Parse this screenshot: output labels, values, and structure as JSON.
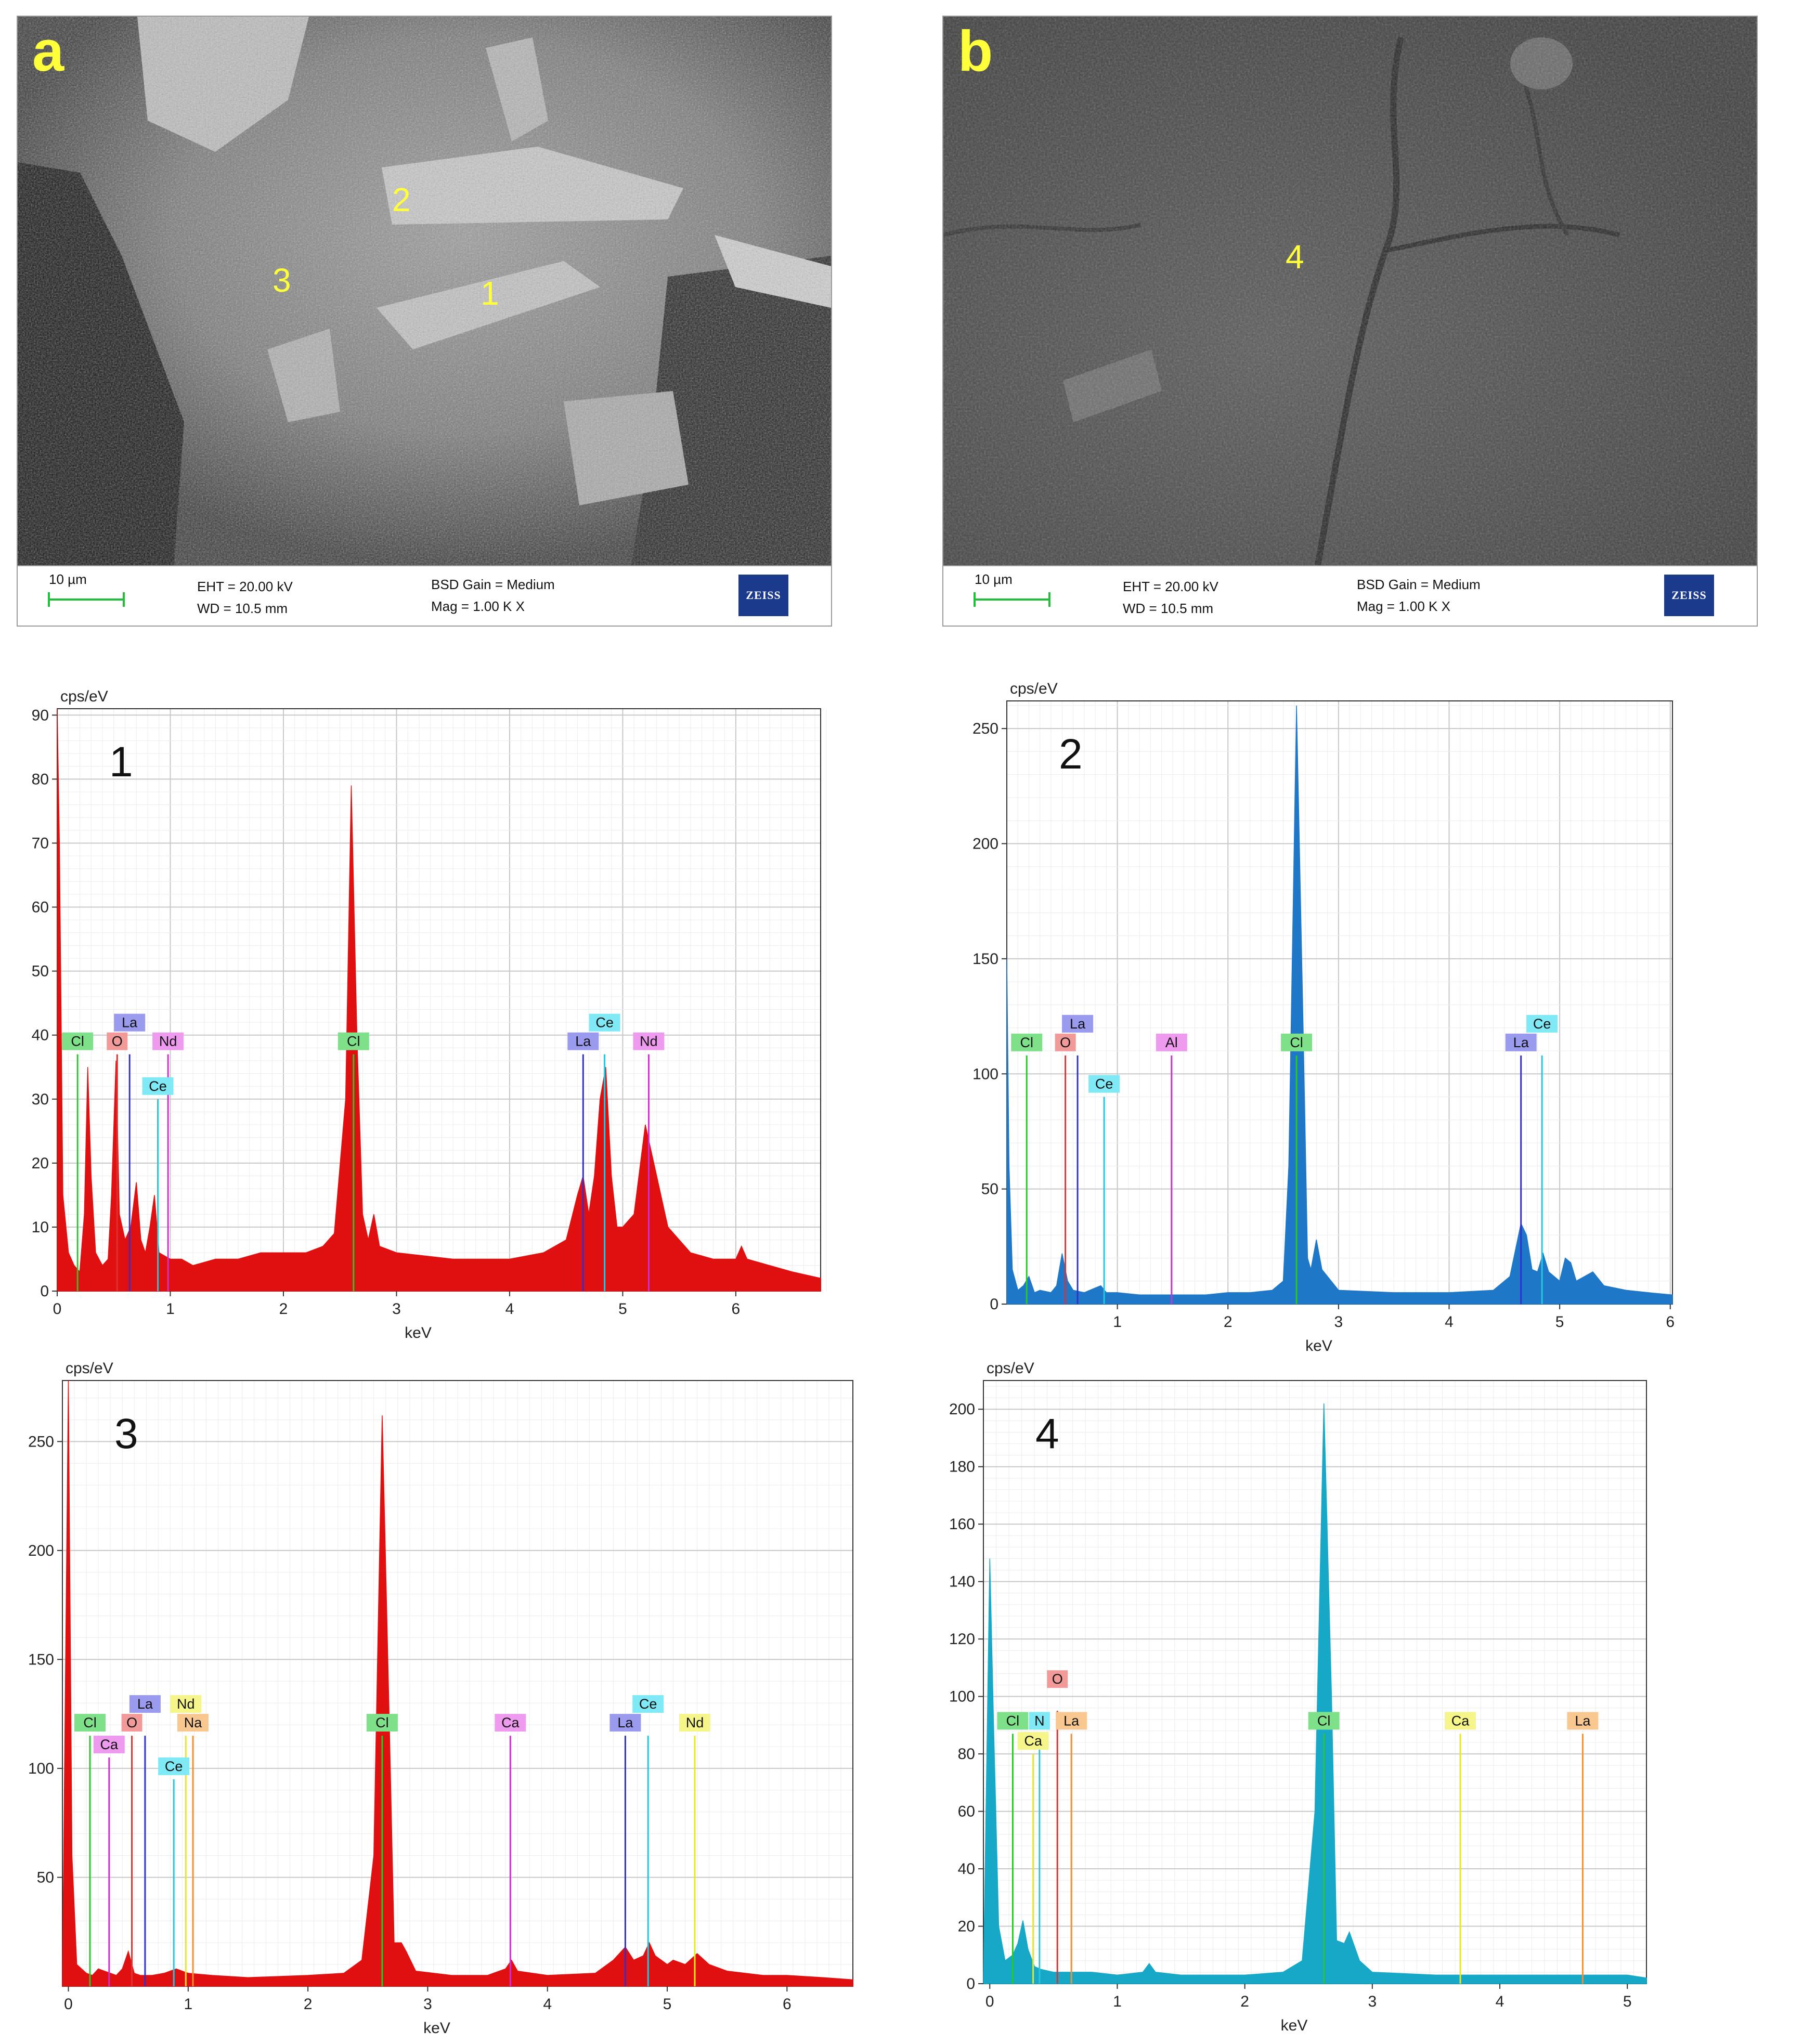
{
  "sem_panels": [
    {
      "letter": "a",
      "points": [
        "1",
        "2",
        "3"
      ],
      "scale_label": "10 µm",
      "eht": "EHT = 20.00 kV",
      "wd": "WD = 10.5 mm",
      "bsd": "BSD Gain = Medium",
      "mag": "Mag =    1.00 K X",
      "logo": "ZEISS",
      "tone": "bright"
    },
    {
      "letter": "b",
      "points": [
        "4"
      ],
      "scale_label": "10 µm",
      "eht": "EHT = 20.00 kV",
      "wd": "WD = 10.5 mm",
      "bsd": "BSD Gain = Medium",
      "mag": "Mag =    1.00 K X",
      "logo": "ZEISS",
      "tone": "dark"
    }
  ],
  "chart_data": [
    {
      "type": "area",
      "panel_number": "1",
      "ylabel": "cps/eV",
      "xlabel": "keV",
      "xlim": [
        0,
        6.75
      ],
      "ylim": [
        0,
        91
      ],
      "xticks": [
        0,
        1,
        2,
        3,
        4,
        5,
        6
      ],
      "yticks": [
        0,
        10,
        20,
        30,
        40,
        50,
        60,
        70,
        80,
        90
      ],
      "fill_color": "#e01010",
      "spectrum": [
        [
          0.0,
          91
        ],
        [
          0.02,
          70
        ],
        [
          0.05,
          15
        ],
        [
          0.1,
          6
        ],
        [
          0.15,
          4
        ],
        [
          0.2,
          3
        ],
        [
          0.24,
          12
        ],
        [
          0.27,
          35
        ],
        [
          0.3,
          18
        ],
        [
          0.34,
          6
        ],
        [
          0.4,
          4
        ],
        [
          0.45,
          5
        ],
        [
          0.48,
          15
        ],
        [
          0.52,
          36
        ],
        [
          0.55,
          12
        ],
        [
          0.6,
          8
        ],
        [
          0.65,
          10
        ],
        [
          0.7,
          17
        ],
        [
          0.74,
          8
        ],
        [
          0.78,
          6
        ],
        [
          0.82,
          10
        ],
        [
          0.86,
          15
        ],
        [
          0.9,
          6
        ],
        [
          1.0,
          5
        ],
        [
          1.1,
          5
        ],
        [
          1.2,
          4
        ],
        [
          1.4,
          5
        ],
        [
          1.6,
          5
        ],
        [
          1.8,
          6
        ],
        [
          2.0,
          6
        ],
        [
          2.2,
          6
        ],
        [
          2.35,
          7
        ],
        [
          2.45,
          9
        ],
        [
          2.55,
          30
        ],
        [
          2.6,
          79
        ],
        [
          2.65,
          40
        ],
        [
          2.7,
          12
        ],
        [
          2.75,
          8
        ],
        [
          2.8,
          12
        ],
        [
          2.85,
          7
        ],
        [
          3.0,
          6
        ],
        [
          3.5,
          5
        ],
        [
          4.0,
          5
        ],
        [
          4.3,
          6
        ],
        [
          4.5,
          8
        ],
        [
          4.6,
          15
        ],
        [
          4.65,
          18
        ],
        [
          4.7,
          12
        ],
        [
          4.75,
          18
        ],
        [
          4.8,
          30
        ],
        [
          4.85,
          35
        ],
        [
          4.9,
          18
        ],
        [
          4.95,
          10
        ],
        [
          5.0,
          10
        ],
        [
          5.1,
          12
        ],
        [
          5.2,
          26
        ],
        [
          5.3,
          18
        ],
        [
          5.4,
          10
        ],
        [
          5.5,
          8
        ],
        [
          5.6,
          6
        ],
        [
          5.8,
          5
        ],
        [
          6.0,
          5
        ],
        [
          6.05,
          7
        ],
        [
          6.1,
          5
        ],
        [
          6.3,
          4
        ],
        [
          6.5,
          3
        ],
        [
          6.75,
          2
        ]
      ],
      "element_lines": [
        {
          "label": "Cl",
          "kev": 0.18,
          "height": 37,
          "color": "#28c828",
          "tag_bg": "#7fe08a"
        },
        {
          "label": "O",
          "kev": 0.53,
          "height": 37,
          "color": "#e03030",
          "tag_bg": "#f29a9a"
        },
        {
          "label": "La",
          "kev": 0.64,
          "height": 37,
          "color": "#3030d0",
          "tag_bg": "#9a9aee"
        },
        {
          "label": "Ce",
          "kev": 0.89,
          "height": 30,
          "color": "#22c8e0",
          "tag_bg": "#7feaf5"
        },
        {
          "label": "Nd",
          "kev": 0.98,
          "height": 37,
          "color": "#d030d0",
          "tag_bg": "#ee9aee"
        },
        {
          "label": "Cl",
          "kev": 2.62,
          "height": 37,
          "color": "#28c828",
          "tag_bg": "#7fe08a"
        },
        {
          "label": "La",
          "kev": 4.65,
          "height": 37,
          "color": "#3030d0",
          "tag_bg": "#9a9aee"
        },
        {
          "label": "Ce",
          "kev": 4.84,
          "height": 37,
          "color": "#22c8e0",
          "tag_bg": "#7feaf5"
        },
        {
          "label": "Nd",
          "kev": 5.23,
          "height": 37,
          "color": "#d030d0",
          "tag_bg": "#ee9aee"
        }
      ],
      "tag_rows": {
        "upper": [
          "La",
          "Ce"
        ],
        "upper_index": [
          2,
          7
        ],
        "mid": [
          0,
          1,
          4,
          5,
          6,
          8
        ],
        "lower": [
          3
        ]
      }
    },
    {
      "type": "area",
      "panel_number": "2",
      "ylabel": "cps/eV",
      "xlabel": "keV",
      "xlim": [
        0,
        6.02
      ],
      "ylim": [
        0,
        262
      ],
      "xticks": [
        1,
        2,
        3,
        4,
        5,
        6
      ],
      "yticks": [
        0,
        50,
        100,
        150,
        200,
        250
      ],
      "fill_color": "#1f77c8",
      "spectrum": [
        [
          0.0,
          150
        ],
        [
          0.02,
          60
        ],
        [
          0.05,
          15
        ],
        [
          0.1,
          6
        ],
        [
          0.15,
          8
        ],
        [
          0.2,
          12
        ],
        [
          0.25,
          5
        ],
        [
          0.3,
          6
        ],
        [
          0.4,
          5
        ],
        [
          0.45,
          8
        ],
        [
          0.5,
          22
        ],
        [
          0.55,
          10
        ],
        [
          0.6,
          6
        ],
        [
          0.7,
          5
        ],
        [
          0.8,
          7
        ],
        [
          0.85,
          8
        ],
        [
          0.9,
          5
        ],
        [
          1.0,
          5
        ],
        [
          1.2,
          4
        ],
        [
          1.5,
          4
        ],
        [
          1.8,
          4
        ],
        [
          2.0,
          5
        ],
        [
          2.2,
          5
        ],
        [
          2.4,
          6
        ],
        [
          2.5,
          10
        ],
        [
          2.55,
          60
        ],
        [
          2.62,
          260
        ],
        [
          2.68,
          120
        ],
        [
          2.72,
          20
        ],
        [
          2.75,
          15
        ],
        [
          2.8,
          28
        ],
        [
          2.85,
          15
        ],
        [
          3.0,
          6
        ],
        [
          3.5,
          5
        ],
        [
          4.0,
          5
        ],
        [
          4.4,
          6
        ],
        [
          4.55,
          12
        ],
        [
          4.65,
          35
        ],
        [
          4.7,
          30
        ],
        [
          4.75,
          15
        ],
        [
          4.8,
          14
        ],
        [
          4.85,
          22
        ],
        [
          4.9,
          14
        ],
        [
          5.0,
          10
        ],
        [
          5.05,
          20
        ],
        [
          5.1,
          18
        ],
        [
          5.15,
          10
        ],
        [
          5.3,
          14
        ],
        [
          5.4,
          8
        ],
        [
          5.6,
          6
        ],
        [
          5.8,
          5
        ],
        [
          6.02,
          4
        ]
      ],
      "element_lines": [
        {
          "label": "Cl",
          "kev": 0.18,
          "height": 108,
          "color": "#28c828",
          "tag_bg": "#7fe08a"
        },
        {
          "label": "O",
          "kev": 0.53,
          "height": 108,
          "color": "#e03030",
          "tag_bg": "#f29a9a"
        },
        {
          "label": "La",
          "kev": 0.64,
          "height": 108,
          "color": "#3030d0",
          "tag_bg": "#9a9aee"
        },
        {
          "label": "Ce",
          "kev": 0.88,
          "height": 90,
          "color": "#22c8e0",
          "tag_bg": "#7feaf5"
        },
        {
          "label": "Al",
          "kev": 1.49,
          "height": 108,
          "color": "#d030d0",
          "tag_bg": "#ee9aee"
        },
        {
          "label": "Cl",
          "kev": 2.62,
          "height": 108,
          "color": "#28c828",
          "tag_bg": "#7fe08a"
        },
        {
          "label": "La",
          "kev": 4.65,
          "height": 108,
          "color": "#3030d0",
          "tag_bg": "#9a9aee"
        },
        {
          "label": "Ce",
          "kev": 4.84,
          "height": 108,
          "color": "#22c8e0",
          "tag_bg": "#7feaf5"
        }
      ],
      "tag_rows": {
        "upper_index": [
          2,
          7
        ],
        "mid": [
          0,
          1,
          4,
          5,
          6
        ],
        "lower": [
          3
        ]
      }
    },
    {
      "type": "area",
      "panel_number": "3",
      "ylabel": "cps/eV",
      "xlabel": "keV",
      "xlim": [
        -0.05,
        6.55
      ],
      "ylim": [
        0,
        278
      ],
      "xticks": [
        0,
        1,
        2,
        3,
        4,
        5,
        6
      ],
      "yticks": [
        50,
        100,
        150,
        200,
        250
      ],
      "fill_color": "#e01010",
      "spectrum": [
        [
          -0.05,
          0
        ],
        [
          0.0,
          278
        ],
        [
          0.03,
          60
        ],
        [
          0.07,
          10
        ],
        [
          0.15,
          6
        ],
        [
          0.2,
          5
        ],
        [
          0.25,
          8
        ],
        [
          0.3,
          7
        ],
        [
          0.4,
          5
        ],
        [
          0.45,
          8
        ],
        [
          0.5,
          16
        ],
        [
          0.55,
          6
        ],
        [
          0.6,
          5
        ],
        [
          0.7,
          5
        ],
        [
          0.8,
          6
        ],
        [
          0.9,
          8
        ],
        [
          1.0,
          6
        ],
        [
          1.2,
          5
        ],
        [
          1.5,
          4
        ],
        [
          2.0,
          5
        ],
        [
          2.3,
          6
        ],
        [
          2.45,
          12
        ],
        [
          2.55,
          60
        ],
        [
          2.62,
          262
        ],
        [
          2.68,
          120
        ],
        [
          2.72,
          20
        ],
        [
          2.78,
          20
        ],
        [
          2.82,
          16
        ],
        [
          2.9,
          7
        ],
        [
          3.2,
          5
        ],
        [
          3.5,
          5
        ],
        [
          3.65,
          8
        ],
        [
          3.7,
          12
        ],
        [
          3.75,
          7
        ],
        [
          4.0,
          5
        ],
        [
          4.4,
          6
        ],
        [
          4.55,
          12
        ],
        [
          4.65,
          18
        ],
        [
          4.72,
          12
        ],
        [
          4.8,
          14
        ],
        [
          4.85,
          20
        ],
        [
          4.9,
          14
        ],
        [
          5.0,
          10
        ],
        [
          5.05,
          12
        ],
        [
          5.15,
          10
        ],
        [
          5.25,
          15
        ],
        [
          5.35,
          10
        ],
        [
          5.5,
          7
        ],
        [
          5.8,
          5
        ],
        [
          6.0,
          5
        ],
        [
          6.3,
          4
        ],
        [
          6.55,
          3
        ]
      ],
      "element_lines": [
        {
          "label": "Cl",
          "kev": 0.18,
          "height": 115,
          "color": "#28c828",
          "tag_bg": "#7fe08a"
        },
        {
          "label": "Ca",
          "kev": 0.34,
          "height": 105,
          "color": "#d030d0",
          "tag_bg": "#ee9aee"
        },
        {
          "label": "O",
          "kev": 0.53,
          "height": 115,
          "color": "#e03030",
          "tag_bg": "#f29a9a"
        },
        {
          "label": "La",
          "kev": 0.64,
          "height": 115,
          "color": "#3030d0",
          "tag_bg": "#9a9aee"
        },
        {
          "label": "Ce",
          "kev": 0.88,
          "height": 95,
          "color": "#22c8e0",
          "tag_bg": "#7feaf5"
        },
        {
          "label": "Nd",
          "kev": 0.98,
          "height": 115,
          "color": "#e8e820",
          "tag_bg": "#f5f58a"
        },
        {
          "label": "Na",
          "kev": 1.04,
          "height": 115,
          "color": "#f09030",
          "tag_bg": "#f8c890"
        },
        {
          "label": "Cl",
          "kev": 2.62,
          "height": 115,
          "color": "#28c828",
          "tag_bg": "#7fe08a"
        },
        {
          "label": "Ca",
          "kev": 3.69,
          "height": 115,
          "color": "#d030d0",
          "tag_bg": "#ee9aee"
        },
        {
          "label": "La",
          "kev": 4.65,
          "height": 115,
          "color": "#3030d0",
          "tag_bg": "#9a9aee"
        },
        {
          "label": "Ce",
          "kev": 4.84,
          "height": 115,
          "color": "#22c8e0",
          "tag_bg": "#7feaf5"
        },
        {
          "label": "Nd",
          "kev": 5.23,
          "height": 115,
          "color": "#e8e820",
          "tag_bg": "#f5f58a"
        }
      ],
      "tag_rows": {
        "upper_index": [
          3,
          5,
          10
        ],
        "mid": [
          0,
          2,
          6,
          7,
          8,
          9,
          11
        ],
        "lower": [
          1,
          4
        ]
      }
    },
    {
      "type": "area",
      "panel_number": "4",
      "ylabel": "cps/eV",
      "xlabel": "keV",
      "xlim": [
        -0.05,
        5.15
      ],
      "ylim": [
        0,
        210
      ],
      "xticks": [
        0,
        1,
        2,
        3,
        4,
        5
      ],
      "yticks": [
        0,
        20,
        40,
        60,
        80,
        100,
        120,
        140,
        160,
        180,
        200
      ],
      "fill_color": "#17a8c8",
      "spectrum": [
        [
          -0.05,
          0
        ],
        [
          0.0,
          148
        ],
        [
          0.03,
          90
        ],
        [
          0.07,
          20
        ],
        [
          0.12,
          8
        ],
        [
          0.18,
          10
        ],
        [
          0.22,
          14
        ],
        [
          0.26,
          22
        ],
        [
          0.3,
          12
        ],
        [
          0.35,
          6
        ],
        [
          0.4,
          5
        ],
        [
          0.5,
          4
        ],
        [
          0.6,
          4
        ],
        [
          0.8,
          4
        ],
        [
          1.0,
          3
        ],
        [
          1.2,
          4
        ],
        [
          1.25,
          7
        ],
        [
          1.3,
          4
        ],
        [
          1.5,
          3
        ],
        [
          2.0,
          3
        ],
        [
          2.3,
          4
        ],
        [
          2.45,
          8
        ],
        [
          2.55,
          60
        ],
        [
          2.62,
          202
        ],
        [
          2.68,
          100
        ],
        [
          2.72,
          15
        ],
        [
          2.78,
          14
        ],
        [
          2.82,
          18
        ],
        [
          2.9,
          8
        ],
        [
          3.0,
          4
        ],
        [
          3.5,
          3
        ],
        [
          4.0,
          3
        ],
        [
          4.5,
          3
        ],
        [
          5.0,
          3
        ],
        [
          5.15,
          2
        ]
      ],
      "element_lines": [
        {
          "label": "Cl",
          "kev": 0.18,
          "height": 87,
          "color": "#28c828",
          "tag_bg": "#7fe08a"
        },
        {
          "label": "Ca",
          "kev": 0.34,
          "height": 80,
          "color": "#e8e820",
          "tag_bg": "#f5f58a"
        },
        {
          "label": "N",
          "kev": 0.39,
          "height": 87,
          "color": "#22c8e0",
          "tag_bg": "#7feaf5"
        },
        {
          "label": "O",
          "kev": 0.53,
          "height": 95,
          "color": "#e03030",
          "tag_bg": "#f29a9a"
        },
        {
          "label": "La",
          "kev": 0.64,
          "height": 87,
          "color": "#f09030",
          "tag_bg": "#f8c890"
        },
        {
          "label": "Cl",
          "kev": 2.62,
          "height": 87,
          "color": "#28c828",
          "tag_bg": "#7fe08a"
        },
        {
          "label": "Ca",
          "kev": 3.69,
          "height": 87,
          "color": "#e8e820",
          "tag_bg": "#f5f58a"
        },
        {
          "label": "La",
          "kev": 4.65,
          "height": 87,
          "color": "#f09030",
          "tag_bg": "#f8c890"
        }
      ],
      "tag_rows": {
        "upper_index": [
          3
        ],
        "mid": [
          0,
          2,
          4,
          5,
          6,
          7
        ],
        "lower": [
          1
        ]
      }
    }
  ]
}
